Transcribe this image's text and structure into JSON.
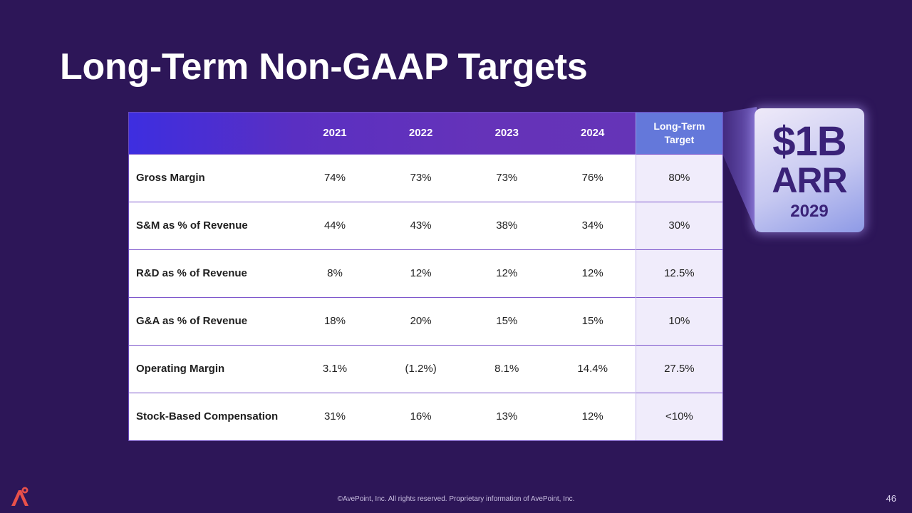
{
  "slide": {
    "title": "Long-Term Non-GAAP Targets",
    "footer": "©AvePoint, Inc. All rights reserved. Proprietary information of AvePoint, Inc.",
    "page_number": "46"
  },
  "table": {
    "header": {
      "blank": "",
      "y2021": "2021",
      "y2022": "2022",
      "y2023": "2023",
      "y2024": "2024",
      "target_line1": "Long-Term",
      "target_line2": "Target"
    },
    "rows": [
      {
        "label": "Gross Margin",
        "y2021": "74%",
        "y2022": "73%",
        "y2023": "73%",
        "y2024": "76%",
        "target": "80%"
      },
      {
        "label": "S&M as % of Revenue",
        "y2021": "44%",
        "y2022": "43%",
        "y2023": "38%",
        "y2024": "34%",
        "target": "30%"
      },
      {
        "label": "R&D as % of Revenue",
        "y2021": "8%",
        "y2022": "12%",
        "y2023": "12%",
        "y2024": "12%",
        "target": "12.5%"
      },
      {
        "label": "G&A as % of Revenue",
        "y2021": "18%",
        "y2022": "20%",
        "y2023": "15%",
        "y2024": "15%",
        "target": "10%"
      },
      {
        "label": "Operating Margin",
        "y2021": "3.1%",
        "y2022": "(1.2%)",
        "y2023": "8.1%",
        "y2024": "14.4%",
        "target": "27.5%"
      },
      {
        "label": "Stock-Based Compensation",
        "y2021": "31%",
        "y2022": "16%",
        "y2023": "13%",
        "y2024": "12%",
        "target": "<10%"
      }
    ]
  },
  "badge": {
    "line1": "$1B",
    "line2": "ARR",
    "year": "2029"
  },
  "colors": {
    "background": "#2d1658",
    "header_gradient_start": "#3d2ee0",
    "header_gradient_end": "#6534b6",
    "target_header": "#6478da",
    "target_column": "#f0ecfb",
    "badge_text": "#3a2278",
    "logo": "#e8504a"
  },
  "icons": {
    "logo": "avepoint-logo-icon"
  }
}
